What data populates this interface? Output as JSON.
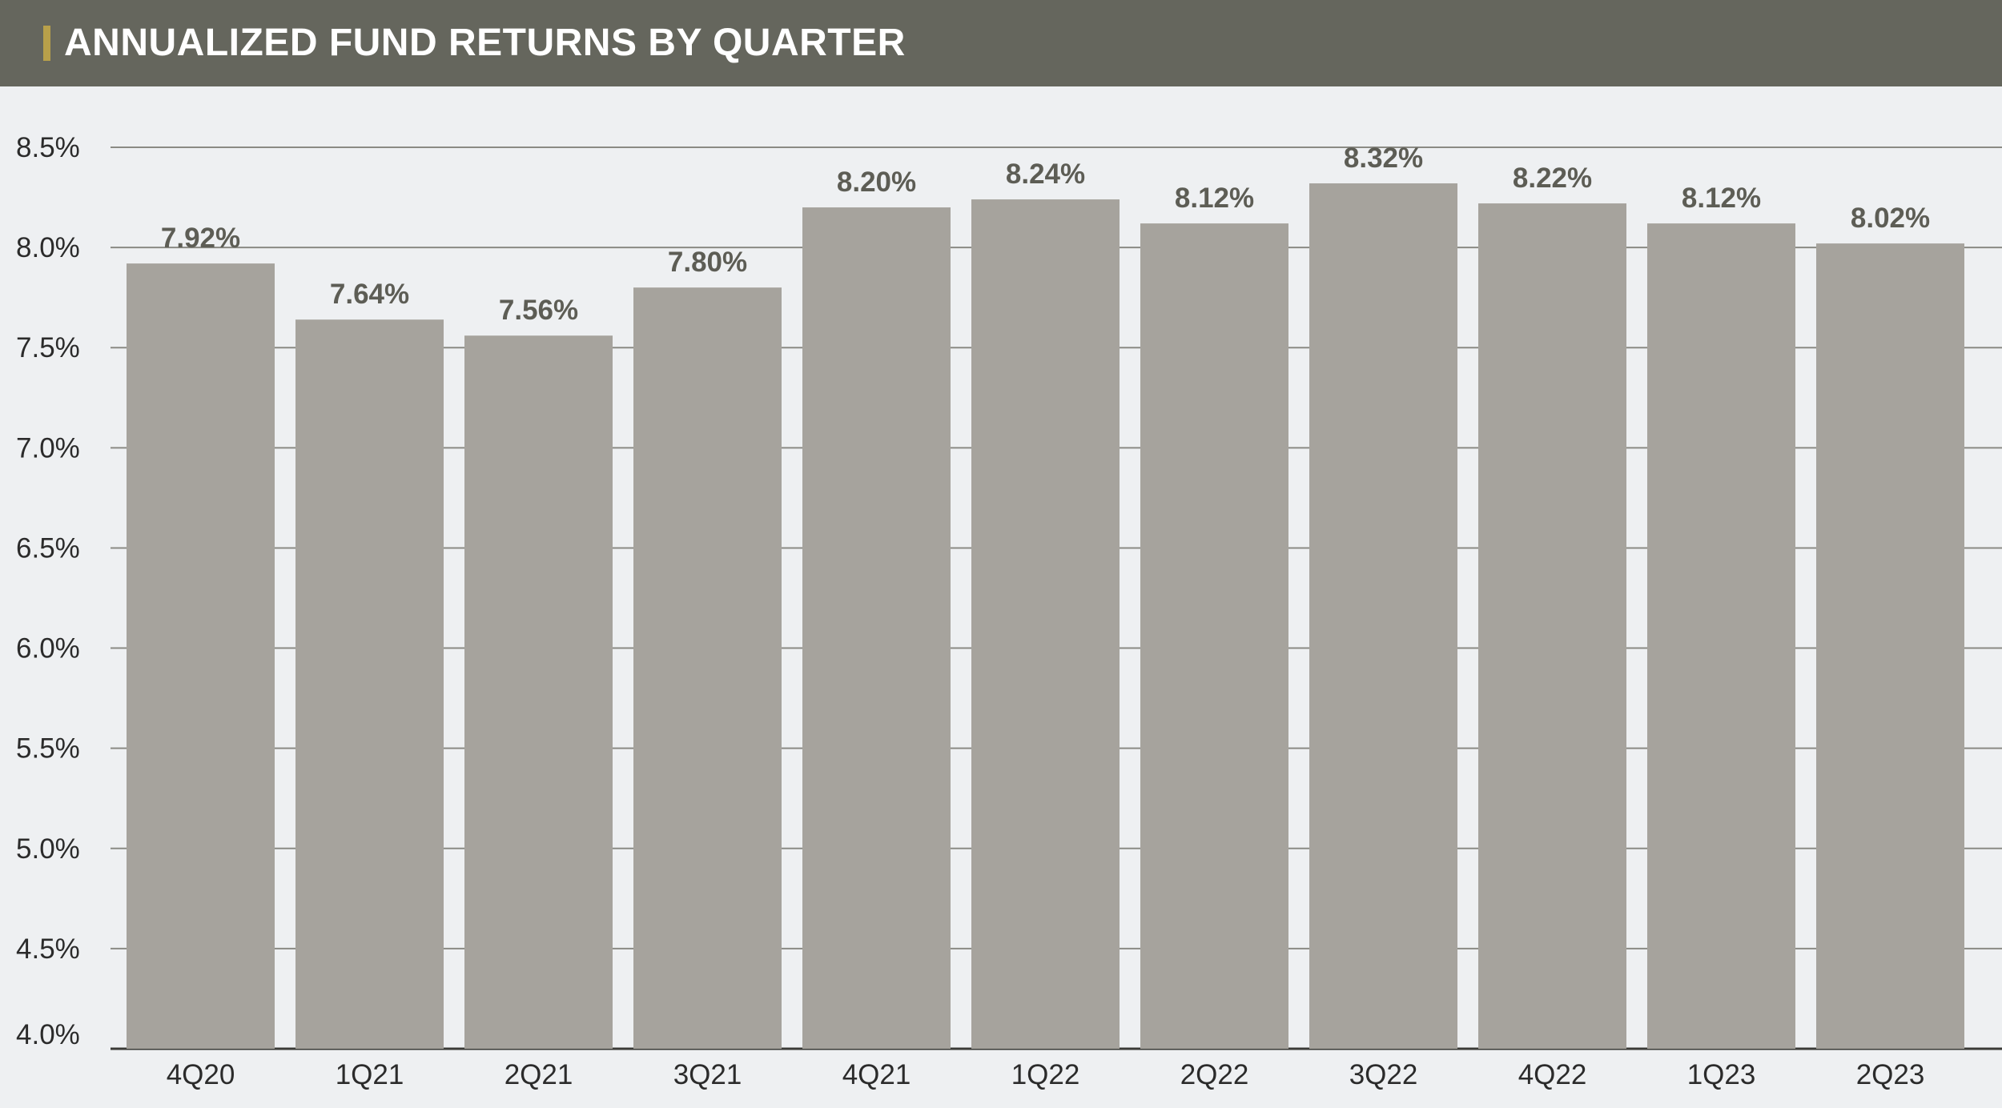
{
  "title": "ANNUALIZED FUND RETURNS BY QUARTER",
  "colors": {
    "header_background": "#65665d",
    "header_accent": "#b8a04a",
    "plot_background": "#eef0f2",
    "bar_fill": "#a6a39d",
    "gridline": "#8a8a84",
    "data_label": "#5d5d55"
  },
  "chart_data": {
    "type": "bar",
    "title": "ANNUALIZED FUND RETURNS BY QUARTER",
    "xlabel": "",
    "ylabel": "",
    "categories": [
      "4Q20",
      "1Q21",
      "2Q21",
      "3Q21",
      "4Q21",
      "1Q22",
      "2Q22",
      "3Q22",
      "4Q22",
      "1Q23",
      "2Q23"
    ],
    "values": [
      7.92,
      7.64,
      7.56,
      7.8,
      8.2,
      8.24,
      8.12,
      8.32,
      8.22,
      8.12,
      8.02
    ],
    "data_labels": [
      "7.92%",
      "7.64%",
      "7.56%",
      "7.80%",
      "8.20%",
      "8.24%",
      "8.12%",
      "8.32%",
      "8.22%",
      "8.12%",
      "8.02%"
    ],
    "ylim": [
      4.0,
      8.5
    ],
    "yticks": [
      4.0,
      4.5,
      5.0,
      5.5,
      6.0,
      6.5,
      7.0,
      7.5,
      8.0,
      8.5
    ],
    "ytick_labels": [
      "4.0%",
      "4.5%",
      "5.0%",
      "5.5%",
      "6.0%",
      "6.5%",
      "7.0%",
      "7.5%",
      "8.0%",
      "8.5%"
    ],
    "grid": true,
    "legend": "none"
  }
}
